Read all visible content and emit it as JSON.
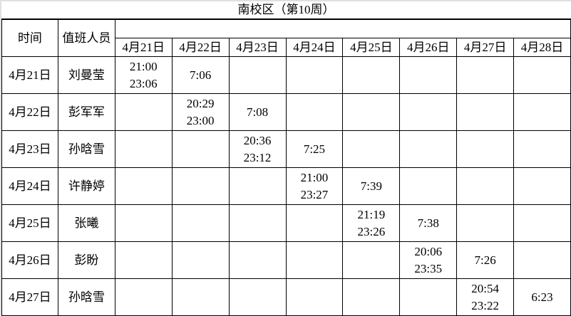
{
  "title": "南校区（第10周）",
  "headers": {
    "time": "时间",
    "staff": "值班人员"
  },
  "dates": [
    "4月21日",
    "4月22日",
    "4月23日",
    "4月24日",
    "4月25日",
    "4月26日",
    "4月27日",
    "4月28日"
  ],
  "rows": [
    {
      "date": "4月21日",
      "name": "刘曼莹",
      "evening": [
        "21:00",
        "23:06"
      ],
      "morning": "7:06"
    },
    {
      "date": "4月22日",
      "name": "彭军军",
      "evening": [
        "20:29",
        "23:00"
      ],
      "morning": "7:08"
    },
    {
      "date": "4月23日",
      "name": "孙晗雪",
      "evening": [
        "20:36",
        "23:12"
      ],
      "morning": "7:25"
    },
    {
      "date": "4月24日",
      "name": "许静婷",
      "evening": [
        "21:00",
        "23:27"
      ],
      "morning": "7:39"
    },
    {
      "date": "4月25日",
      "name": "张曦",
      "evening": [
        "21:19",
        "23:26"
      ],
      "morning": "7:38"
    },
    {
      "date": "4月26日",
      "name": "彭盼",
      "evening": [
        "20:06",
        "23:35"
      ],
      "morning": "7:26"
    },
    {
      "date": "4月27日",
      "name": "孙晗雪",
      "evening": [
        "20:54",
        "23:22"
      ],
      "morning": "6:23"
    }
  ]
}
